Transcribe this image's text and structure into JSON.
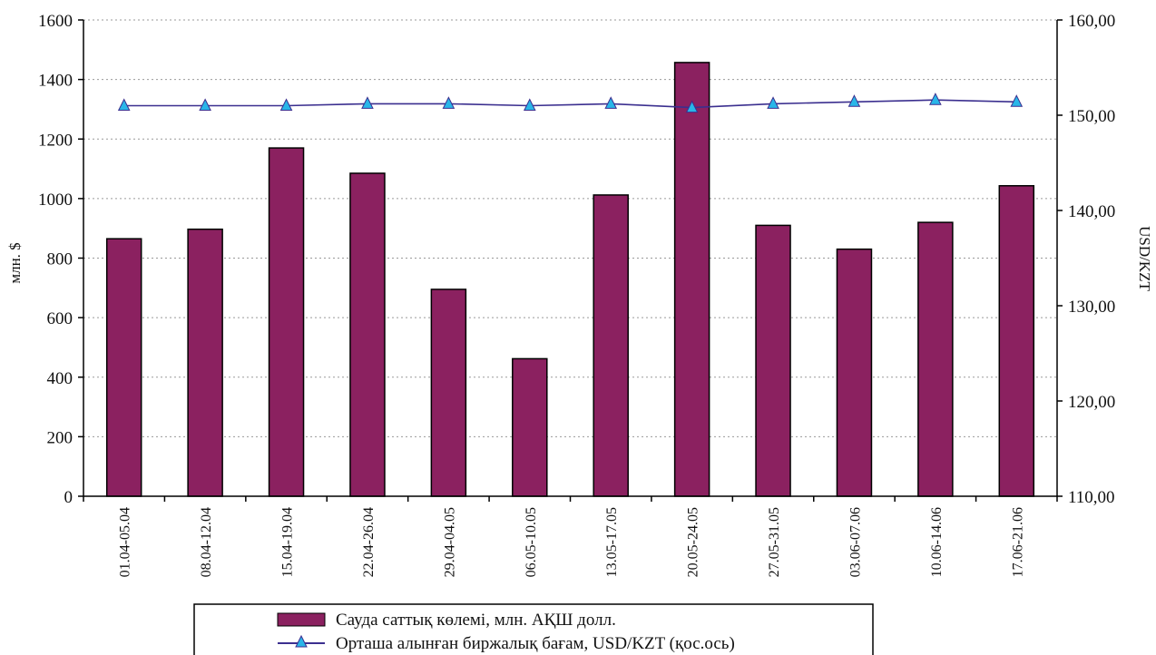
{
  "chart_data": {
    "type": "bar",
    "categories": [
      "01.04-05.04",
      "08.04-12.04",
      "15.04-19.04",
      "22.04-26.04",
      "29.04-04.05",
      "06.05-10.05",
      "13.05-17.05",
      "20.05-24.05",
      "27.05-31.05",
      "03.06-07.06",
      "10.06-14.06",
      "17.06-21.06"
    ],
    "series": [
      {
        "name": "Сауда саттық көлемі, млн. АҚШ долл.",
        "kind": "bar",
        "axis": "left",
        "color": "#8b2160",
        "values": [
          865,
          897,
          1170,
          1085,
          695,
          462,
          1012,
          1457,
          910,
          830,
          920,
          1043
        ]
      },
      {
        "name": "Орташа алынған  биржалық бағам, USD/KZT (қос.ось)",
        "kind": "line",
        "axis": "right",
        "color": "#3b2f8f",
        "marker_color": "#29b6e8",
        "values": [
          151.0,
          151.0,
          151.0,
          151.2,
          151.2,
          151.0,
          151.2,
          150.8,
          151.2,
          151.4,
          151.6,
          151.4
        ]
      }
    ],
    "ylabel": "млн. $",
    "ylabel_right": "USD/KZT",
    "ylim": [
      0,
      1600
    ],
    "ylim_right": [
      110,
      160
    ],
    "yticks": [
      "0",
      "200",
      "400",
      "600",
      "800",
      "1000",
      "1200",
      "1400",
      "1600"
    ],
    "yticks_right": [
      "110,00",
      "120,00",
      "130,00",
      "140,00",
      "150,00",
      "160,00"
    ],
    "grid": true,
    "legend_position": "bottom"
  }
}
